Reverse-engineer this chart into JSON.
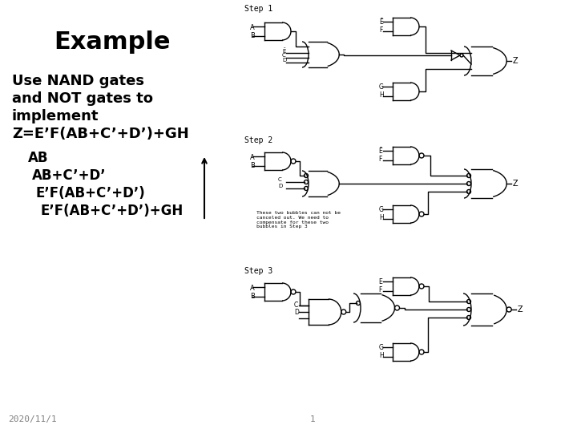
{
  "title": "Example",
  "body_lines": [
    "Use NAND gates",
    "and NOT gates to",
    "implement",
    "Z=E’F(AB+C’+D’)+GH"
  ],
  "step_items": [
    "AB",
    "AB+C’+D’",
    "E’F(AB+C’+D’)",
    "E’F(AB+C’+D’)+GH"
  ],
  "date": "2020/11/1",
  "page": "1",
  "step_labels": [
    "Step 1",
    "Step 2",
    "Step 3"
  ],
  "annotation": "These two bubbles can not be\ncanceled out. We need to\ncompensate for these two\nbubbles in Step 3",
  "bg_color": "#ffffff",
  "text_color": "#000000",
  "gate_color": "#000000"
}
